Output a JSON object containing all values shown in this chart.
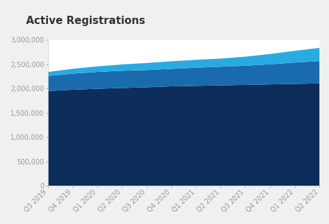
{
  "title": "Active Registrations",
  "title_fontsize": 11,
  "background_color": "#f0f0f0",
  "plot_bg_color": "#ffffff",
  "x_labels": [
    "Q3 2019",
    "Q4 2019",
    "Q1 2020",
    "Q2 2020",
    "Q3 2020",
    "Q4 2020",
    "Q1 2021",
    "Q2 2021",
    "Q3 2021",
    "Q4 2021",
    "Q1 2022",
    "Q2 2022"
  ],
  "layer1": [
    1950000,
    1975000,
    1995000,
    2010000,
    2025000,
    2045000,
    2055000,
    2065000,
    2075000,
    2085000,
    2095000,
    2105000
  ],
  "layer2": [
    310000,
    330000,
    345000,
    355000,
    355000,
    360000,
    375000,
    385000,
    395000,
    415000,
    440000,
    460000
  ],
  "layer3": [
    80000,
    100000,
    115000,
    130000,
    145000,
    155000,
    160000,
    165000,
    185000,
    210000,
    240000,
    270000
  ],
  "color1": "#0d2d5a",
  "color2": "#1a6bad",
  "color3": "#29aae1",
  "ylim_max": 3000000,
  "ytick_values": [
    0,
    500000,
    1000000,
    1500000,
    2000000,
    2500000,
    3000000
  ],
  "ylabel_fontsize": 7,
  "xlabel_fontsize": 7,
  "tick_color": "#999999",
  "spine_color": "#cccccc",
  "title_color": "#333333"
}
